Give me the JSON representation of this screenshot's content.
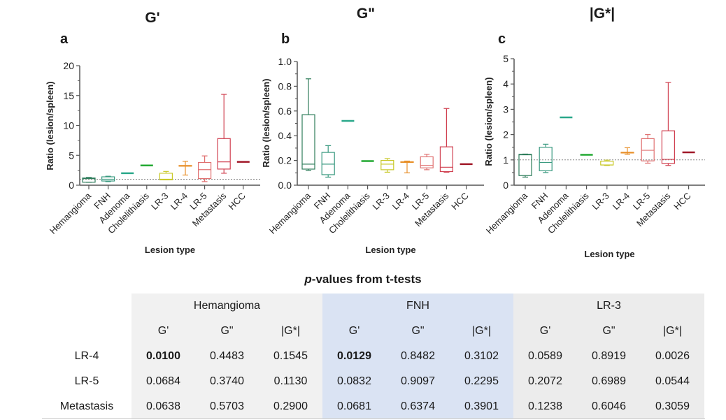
{
  "chart_data": [
    {
      "type": "box",
      "panel_label": "a",
      "title": "G'",
      "xlabel": "Lesion type",
      "ylabel": "Ratio (lesion/spleen)",
      "ylim": [
        0,
        20
      ],
      "yticks": [
        "0",
        "5",
        "10",
        "15",
        "20"
      ],
      "ytick_values": [
        0,
        5,
        10,
        15,
        20
      ],
      "reference_line": 1,
      "categories": [
        "Hemangioma",
        "FNH",
        "Adenoma",
        "Cholelithiasis",
        "LR-3",
        "LR-4",
        "LR-5",
        "Metastasis",
        "HCC"
      ],
      "boxes": [
        {
          "min": 0.5,
          "q1": 0.5,
          "median": 1.1,
          "q3": 1.2,
          "max": 1.3
        },
        {
          "min": 0.6,
          "q1": 0.7,
          "median": 1.0,
          "q3": 1.4,
          "max": 1.5
        },
        {
          "min": 2.0,
          "q1": 2.0,
          "median": 2.0,
          "q3": 2.0,
          "max": 2.0
        },
        {
          "min": 3.3,
          "q1": 3.3,
          "median": 3.3,
          "q3": 3.3,
          "max": 3.3
        },
        {
          "min": 0.9,
          "q1": 0.9,
          "median": 1.0,
          "q3": 2.0,
          "max": 2.3
        },
        {
          "min": 1.7,
          "q1": 3.2,
          "median": 3.2,
          "q3": 3.3,
          "max": 4.0
        },
        {
          "min": 0.6,
          "q1": 1.1,
          "median": 2.6,
          "q3": 3.8,
          "max": 4.9
        },
        {
          "min": 2.0,
          "q1": 2.7,
          "median": 3.9,
          "q3": 7.8,
          "max": 15.2
        },
        {
          "min": 3.9,
          "q1": 3.9,
          "median": 3.9,
          "q3": 3.9,
          "max": 3.9
        }
      ]
    },
    {
      "type": "box",
      "panel_label": "b",
      "title": "G\"",
      "xlabel": "Lesion type",
      "ylabel": "Ratio (lesion/spleen)",
      "ylim": [
        0,
        1.0
      ],
      "yticks": [
        "0.0",
        "0.2",
        "0.4",
        "0.6",
        "0.8",
        "1.0"
      ],
      "ytick_values": [
        0,
        0.2,
        0.4,
        0.6,
        0.8,
        1.0
      ],
      "reference_line": null,
      "categories": [
        "Hemangioma",
        "FNH",
        "Adenoma",
        "Cholelithiasis",
        "LR-3",
        "LR-4",
        "LR-5",
        "Metastasis",
        "HCC"
      ],
      "boxes": [
        {
          "min": 0.12,
          "q1": 0.13,
          "median": 0.17,
          "q3": 0.57,
          "max": 0.86
        },
        {
          "min": 0.065,
          "q1": 0.085,
          "median": 0.17,
          "q3": 0.265,
          "max": 0.32
        },
        {
          "min": 0.52,
          "q1": 0.52,
          "median": 0.52,
          "q3": 0.52,
          "max": 0.52
        },
        {
          "min": 0.195,
          "q1": 0.195,
          "median": 0.195,
          "q3": 0.195,
          "max": 0.195
        },
        {
          "min": 0.105,
          "q1": 0.125,
          "median": 0.17,
          "q3": 0.2,
          "max": 0.215
        },
        {
          "min": 0.1,
          "q1": 0.185,
          "median": 0.185,
          "q3": 0.19,
          "max": 0.195
        },
        {
          "min": 0.125,
          "q1": 0.14,
          "median": 0.16,
          "q3": 0.23,
          "max": 0.25
        },
        {
          "min": 0.105,
          "q1": 0.11,
          "median": 0.145,
          "q3": 0.31,
          "max": 0.62
        },
        {
          "min": 0.17,
          "q1": 0.17,
          "median": 0.17,
          "q3": 0.17,
          "max": 0.17
        }
      ]
    },
    {
      "type": "box",
      "panel_label": "c",
      "title": "|G*|",
      "xlabel": "Lesion type",
      "ylabel": "Ratio (lesion/spleen)",
      "ylim": [
        0,
        5
      ],
      "yticks": [
        "0",
        "1",
        "2",
        "3",
        "4",
        "5"
      ],
      "ytick_values": [
        0,
        1,
        2,
        3,
        4,
        5
      ],
      "reference_line": 1,
      "categories": [
        "Hemangioma",
        "FNH",
        "Adenoma",
        "Cholelithiasis",
        "LR-3",
        "LR-4",
        "LR-5",
        "Metastasis",
        "HCC"
      ],
      "boxes": [
        {
          "min": 0.32,
          "q1": 0.38,
          "median": 1.2,
          "q3": 1.22,
          "max": 1.23
        },
        {
          "min": 0.5,
          "q1": 0.57,
          "median": 0.9,
          "q3": 1.5,
          "max": 1.62
        },
        {
          "min": 2.68,
          "q1": 2.68,
          "median": 2.68,
          "q3": 2.68,
          "max": 2.68
        },
        {
          "min": 1.2,
          "q1": 1.2,
          "median": 1.2,
          "q3": 1.2,
          "max": 1.2
        },
        {
          "min": 0.78,
          "q1": 0.8,
          "median": 0.8,
          "q3": 0.95,
          "max": 0.99
        },
        {
          "min": 1.22,
          "q1": 1.28,
          "median": 1.3,
          "q3": 1.3,
          "max": 1.48
        },
        {
          "min": 0.87,
          "q1": 0.96,
          "median": 1.38,
          "q3": 1.84,
          "max": 2.0
        },
        {
          "min": 0.78,
          "q1": 0.86,
          "median": 1.02,
          "q3": 2.15,
          "max": 4.06
        },
        {
          "min": 1.3,
          "q1": 1.3,
          "median": 1.3,
          "q3": 1.3,
          "max": 1.3
        }
      ]
    }
  ],
  "category_colors": [
    "#2e7d5b",
    "#3a9a80",
    "#2aa88a",
    "#22a832",
    "#c8c828",
    "#e8902a",
    "#e07070",
    "#d04050",
    "#a01828"
  ],
  "table": {
    "title_italic": "p",
    "title_rest": "-values from t-tests",
    "groups": [
      "Hemangioma",
      "FNH",
      "LR-3"
    ],
    "subheaders": [
      "G'",
      "G\"",
      "|G*|",
      "G'",
      "G\"",
      "|G*|",
      "G'",
      "G\"",
      "|G*|"
    ],
    "rows": [
      {
        "label": "LR-4",
        "values": [
          "0.0100",
          "0.4483",
          "0.1545",
          "0.0129",
          "0.8482",
          "0.3102",
          "0.0589",
          "0.8919",
          "0.0026"
        ],
        "bold": [
          true,
          false,
          false,
          true,
          false,
          false,
          false,
          false,
          false
        ]
      },
      {
        "label": "LR-5",
        "values": [
          "0.0684",
          "0.3740",
          "0.1130",
          "0.0832",
          "0.9097",
          "0.2295",
          "0.2072",
          "0.6989",
          "0.0544"
        ],
        "bold": [
          false,
          false,
          false,
          false,
          false,
          false,
          false,
          false,
          false
        ]
      },
      {
        "label": "Metastasis",
        "values": [
          "0.0638",
          "0.5703",
          "0.2900",
          "0.0681",
          "0.6374",
          "0.3901",
          "0.1238",
          "0.6046",
          "0.3059"
        ],
        "bold": [
          false,
          false,
          false,
          false,
          false,
          false,
          false,
          false,
          false
        ]
      }
    ],
    "group_colors": [
      "#f1f1f1",
      "#dae3f3",
      "#ececec"
    ]
  }
}
